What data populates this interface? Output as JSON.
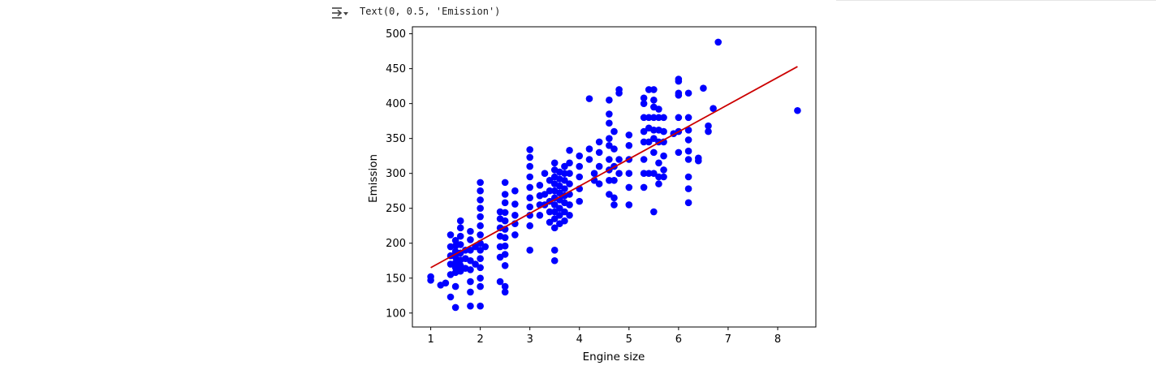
{
  "cell_output": {
    "text": "Text(0, 0.5, 'Emission')",
    "icon": "output-collapse-icon"
  },
  "chart_data": {
    "type": "scatter",
    "title": "",
    "xlabel": "Engine size",
    "ylabel": "Emission",
    "xlim": [
      0.63,
      8.77
    ],
    "ylim": [
      80,
      510
    ],
    "xticks": [
      1,
      2,
      3,
      4,
      5,
      6,
      7,
      8
    ],
    "yticks": [
      100,
      150,
      200,
      250,
      300,
      350,
      400,
      450,
      500
    ],
    "grid": false,
    "point_color": "#0000ff",
    "line_color": "#cc0000",
    "series": [
      {
        "kind": "scatter",
        "points": [
          [
            1.0,
            152
          ],
          [
            1.0,
            147
          ],
          [
            1.2,
            140
          ],
          [
            1.3,
            143
          ],
          [
            1.4,
            123
          ],
          [
            1.4,
            155
          ],
          [
            1.4,
            170
          ],
          [
            1.4,
            182
          ],
          [
            1.4,
            195
          ],
          [
            1.4,
            212
          ],
          [
            1.5,
            108
          ],
          [
            1.5,
            138
          ],
          [
            1.5,
            158
          ],
          [
            1.5,
            165
          ],
          [
            1.5,
            172
          ],
          [
            1.5,
            180
          ],
          [
            1.5,
            188
          ],
          [
            1.5,
            196
          ],
          [
            1.5,
            204
          ],
          [
            1.6,
            160
          ],
          [
            1.6,
            168
          ],
          [
            1.6,
            176
          ],
          [
            1.6,
            186
          ],
          [
            1.6,
            198
          ],
          [
            1.6,
            210
          ],
          [
            1.6,
            222
          ],
          [
            1.6,
            232
          ],
          [
            1.7,
            164
          ],
          [
            1.7,
            178
          ],
          [
            1.7,
            190
          ],
          [
            1.8,
            110
          ],
          [
            1.8,
            130
          ],
          [
            1.8,
            145
          ],
          [
            1.8,
            162
          ],
          [
            1.8,
            175
          ],
          [
            1.8,
            190
          ],
          [
            1.8,
            205
          ],
          [
            1.8,
            217
          ],
          [
            1.9,
            170
          ],
          [
            1.9,
            195
          ],
          [
            2.0,
            110
          ],
          [
            2.0,
            138
          ],
          [
            2.0,
            150
          ],
          [
            2.0,
            165
          ],
          [
            2.0,
            178
          ],
          [
            2.0,
            190
          ],
          [
            2.0,
            200
          ],
          [
            2.0,
            212
          ],
          [
            2.0,
            225
          ],
          [
            2.0,
            238
          ],
          [
            2.0,
            250
          ],
          [
            2.0,
            262
          ],
          [
            2.0,
            275
          ],
          [
            2.0,
            287
          ],
          [
            2.1,
            195
          ],
          [
            2.4,
            145
          ],
          [
            2.4,
            180
          ],
          [
            2.4,
            195
          ],
          [
            2.4,
            210
          ],
          [
            2.4,
            222
          ],
          [
            2.4,
            235
          ],
          [
            2.4,
            245
          ],
          [
            2.5,
            130
          ],
          [
            2.5,
            138
          ],
          [
            2.5,
            168
          ],
          [
            2.5,
            184
          ],
          [
            2.5,
            196
          ],
          [
            2.5,
            208
          ],
          [
            2.5,
            220
          ],
          [
            2.5,
            232
          ],
          [
            2.5,
            244
          ],
          [
            2.5,
            258
          ],
          [
            2.5,
            270
          ],
          [
            2.5,
            287
          ],
          [
            2.7,
            212
          ],
          [
            2.7,
            228
          ],
          [
            2.7,
            240
          ],
          [
            2.7,
            256
          ],
          [
            2.7,
            275
          ],
          [
            3.0,
            190
          ],
          [
            3.0,
            225
          ],
          [
            3.0,
            240
          ],
          [
            3.0,
            252
          ],
          [
            3.0,
            265
          ],
          [
            3.0,
            280
          ],
          [
            3.0,
            295
          ],
          [
            3.0,
            310
          ],
          [
            3.0,
            323
          ],
          [
            3.0,
            334
          ],
          [
            3.2,
            240
          ],
          [
            3.2,
            255
          ],
          [
            3.2,
            268
          ],
          [
            3.2,
            283
          ],
          [
            3.3,
            255
          ],
          [
            3.3,
            270
          ],
          [
            3.3,
            300
          ],
          [
            3.4,
            230
          ],
          [
            3.4,
            245
          ],
          [
            3.4,
            260
          ],
          [
            3.4,
            275
          ],
          [
            3.4,
            290
          ],
          [
            3.5,
            175
          ],
          [
            3.5,
            190
          ],
          [
            3.5,
            222
          ],
          [
            3.5,
            235
          ],
          [
            3.5,
            245
          ],
          [
            3.5,
            255
          ],
          [
            3.5,
            265
          ],
          [
            3.5,
            275
          ],
          [
            3.5,
            285
          ],
          [
            3.5,
            295
          ],
          [
            3.5,
            305
          ],
          [
            3.5,
            315
          ],
          [
            3.6,
            228
          ],
          [
            3.6,
            240
          ],
          [
            3.6,
            250
          ],
          [
            3.6,
            262
          ],
          [
            3.6,
            272
          ],
          [
            3.6,
            282
          ],
          [
            3.6,
            292
          ],
          [
            3.6,
            302
          ],
          [
            3.7,
            232
          ],
          [
            3.7,
            245
          ],
          [
            3.7,
            258
          ],
          [
            3.7,
            268
          ],
          [
            3.7,
            278
          ],
          [
            3.7,
            290
          ],
          [
            3.7,
            300
          ],
          [
            3.7,
            310
          ],
          [
            3.8,
            240
          ],
          [
            3.8,
            255
          ],
          [
            3.8,
            270
          ],
          [
            3.8,
            285
          ],
          [
            3.8,
            300
          ],
          [
            3.8,
            315
          ],
          [
            3.8,
            333
          ],
          [
            4.0,
            260
          ],
          [
            4.0,
            278
          ],
          [
            4.0,
            295
          ],
          [
            4.0,
            310
          ],
          [
            4.0,
            325
          ],
          [
            4.2,
            320
          ],
          [
            4.2,
            335
          ],
          [
            4.2,
            407
          ],
          [
            4.3,
            290
          ],
          [
            4.3,
            300
          ],
          [
            4.4,
            285
          ],
          [
            4.4,
            310
          ],
          [
            4.4,
            330
          ],
          [
            4.4,
            345
          ],
          [
            4.6,
            270
          ],
          [
            4.6,
            290
          ],
          [
            4.6,
            305
          ],
          [
            4.6,
            320
          ],
          [
            4.6,
            340
          ],
          [
            4.6,
            350
          ],
          [
            4.6,
            372
          ],
          [
            4.6,
            385
          ],
          [
            4.6,
            405
          ],
          [
            4.7,
            255
          ],
          [
            4.7,
            265
          ],
          [
            4.7,
            290
          ],
          [
            4.7,
            310
          ],
          [
            4.7,
            335
          ],
          [
            4.7,
            360
          ],
          [
            4.8,
            300
          ],
          [
            4.8,
            320
          ],
          [
            4.8,
            415
          ],
          [
            4.8,
            420
          ],
          [
            5.0,
            255
          ],
          [
            5.0,
            280
          ],
          [
            5.0,
            300
          ],
          [
            5.0,
            320
          ],
          [
            5.0,
            340
          ],
          [
            5.0,
            355
          ],
          [
            5.3,
            280
          ],
          [
            5.3,
            300
          ],
          [
            5.3,
            320
          ],
          [
            5.3,
            345
          ],
          [
            5.3,
            360
          ],
          [
            5.3,
            380
          ],
          [
            5.3,
            400
          ],
          [
            5.3,
            408
          ],
          [
            5.4,
            300
          ],
          [
            5.4,
            345
          ],
          [
            5.4,
            365
          ],
          [
            5.4,
            380
          ],
          [
            5.4,
            420
          ],
          [
            5.5,
            245
          ],
          [
            5.5,
            300
          ],
          [
            5.5,
            330
          ],
          [
            5.5,
            350
          ],
          [
            5.5,
            362
          ],
          [
            5.5,
            380
          ],
          [
            5.5,
            395
          ],
          [
            5.5,
            405
          ],
          [
            5.5,
            420
          ],
          [
            5.6,
            285
          ],
          [
            5.6,
            295
          ],
          [
            5.6,
            315
          ],
          [
            5.6,
            345
          ],
          [
            5.6,
            362
          ],
          [
            5.6,
            380
          ],
          [
            5.6,
            392
          ],
          [
            5.7,
            295
          ],
          [
            5.7,
            305
          ],
          [
            5.7,
            325
          ],
          [
            5.7,
            345
          ],
          [
            5.7,
            360
          ],
          [
            5.7,
            380
          ],
          [
            5.9,
            357
          ],
          [
            6.0,
            330
          ],
          [
            6.0,
            360
          ],
          [
            6.0,
            380
          ],
          [
            6.0,
            412
          ],
          [
            6.0,
            415
          ],
          [
            6.0,
            432
          ],
          [
            6.0,
            435
          ],
          [
            6.2,
            258
          ],
          [
            6.2,
            278
          ],
          [
            6.2,
            295
          ],
          [
            6.2,
            320
          ],
          [
            6.2,
            332
          ],
          [
            6.2,
            348
          ],
          [
            6.2,
            362
          ],
          [
            6.2,
            380
          ],
          [
            6.2,
            415
          ],
          [
            6.4,
            318
          ],
          [
            6.4,
            322
          ],
          [
            6.5,
            422
          ],
          [
            6.6,
            360
          ],
          [
            6.6,
            368
          ],
          [
            6.7,
            393
          ],
          [
            6.8,
            488
          ],
          [
            8.4,
            390
          ]
        ]
      },
      {
        "kind": "line",
        "points": [
          [
            1.0,
            165
          ],
          [
            8.4,
            453
          ]
        ]
      }
    ]
  }
}
